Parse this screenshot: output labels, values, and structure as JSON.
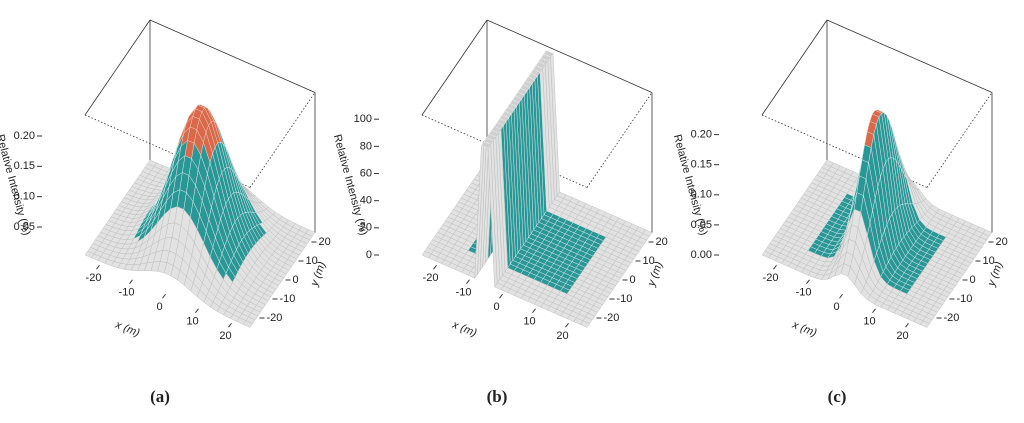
{
  "panels": [
    {
      "caption": "(a)",
      "z_label": "Relative Intensity (%)",
      "x_label": "x (m)",
      "y_label": "y (m)",
      "z_ticks": [
        "0.05",
        "0.10",
        "0.15",
        "0.20"
      ],
      "x_ticks": [
        "-20",
        "-10",
        "0",
        "10",
        "20"
      ],
      "y_ticks": [
        "-20",
        "-10",
        "0",
        "10",
        "20"
      ]
    },
    {
      "caption": "(b)",
      "z_label": "Relative Intensity (%)",
      "x_label": "x (m)",
      "y_label": "y (m)",
      "z_ticks": [
        "0",
        "20",
        "40",
        "60",
        "80",
        "100"
      ],
      "x_ticks": [
        "-20",
        "-10",
        "0",
        "10",
        "20"
      ],
      "y_ticks": [
        "-20",
        "-10",
        "0",
        "10",
        "20"
      ]
    },
    {
      "caption": "(c)",
      "z_label": "Relative Intensity (%)",
      "x_label": "x (m)",
      "y_label": "y (m)",
      "z_ticks": [
        "0.00",
        "0.05",
        "0.10",
        "0.15",
        "0.20"
      ],
      "x_ticks": [
        "-20",
        "-10",
        "0",
        "10",
        "20"
      ],
      "y_ticks": [
        "-20",
        "-10",
        "0",
        "10",
        "20"
      ]
    }
  ]
}
